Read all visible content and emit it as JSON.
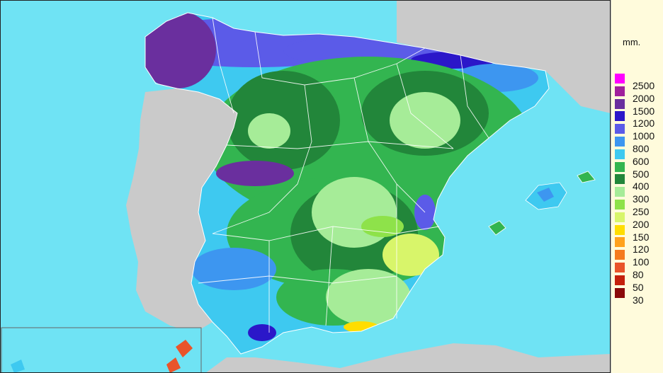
{
  "legend": {
    "unit": "mm.",
    "classes": [
      {
        "label": "2500",
        "color": "#ff00ff"
      },
      {
        "label": "2000",
        "color": "#a0209c"
      },
      {
        "label": "1500",
        "color": "#6a2f9e"
      },
      {
        "label": "1200",
        "color": "#2b17c9"
      },
      {
        "label": "1000",
        "color": "#5b5be8"
      },
      {
        "label": "800",
        "color": "#3d96f0"
      },
      {
        "label": "600",
        "color": "#3ec9f0"
      },
      {
        "label": "500",
        "color": "#33b550"
      },
      {
        "label": "400",
        "color": "#22863a"
      },
      {
        "label": "300",
        "color": "#a6ec98"
      },
      {
        "label": "250",
        "color": "#8ee24a"
      },
      {
        "label": "200",
        "color": "#d8f56a"
      },
      {
        "label": "150",
        "color": "#ffdd00"
      },
      {
        "label": "120",
        "color": "#ffa21e"
      },
      {
        "label": "100",
        "color": "#f57a1e"
      },
      {
        "label": "80",
        "color": "#e9542a"
      },
      {
        "label": "50",
        "color": "#c4200c"
      },
      {
        "label": "30",
        "color": "#8a0a0a"
      }
    ]
  },
  "colors": {
    "sea": "#6fe3f4",
    "land_other": "#cacaca",
    "borders": "#ffffff"
  }
}
